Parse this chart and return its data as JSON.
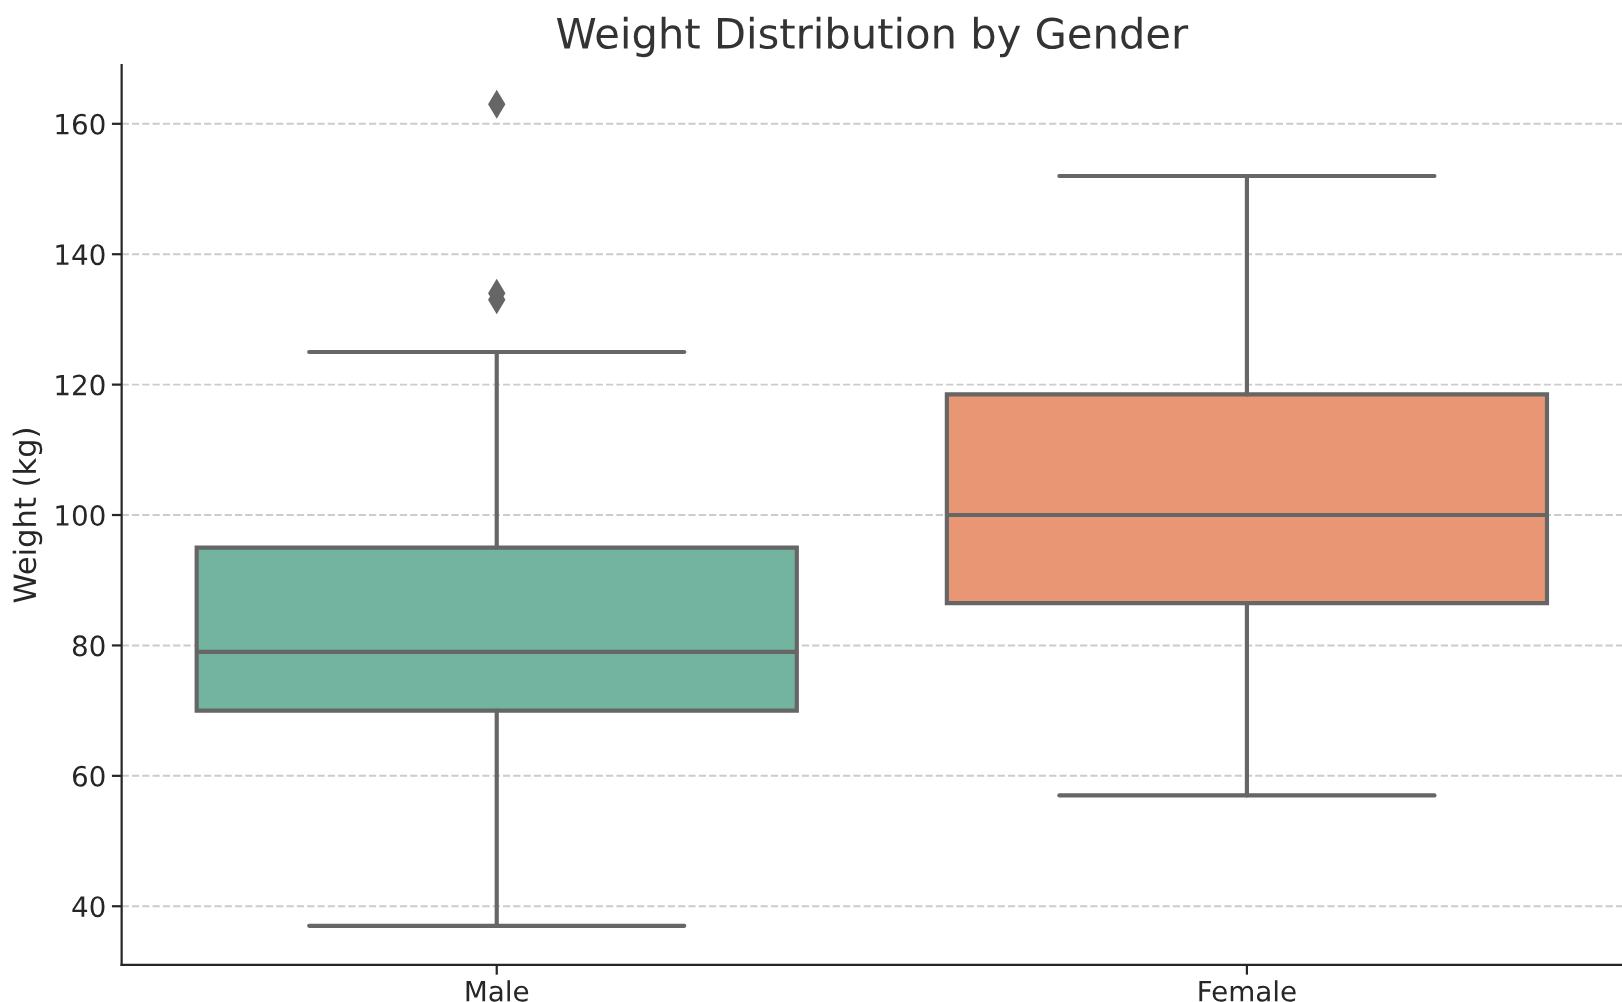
{
  "chart_data": {
    "type": "box",
    "title": "Weight Distribution by Gender",
    "ylabel": "Weight (kg)",
    "categories": [
      "Male",
      "Female"
    ],
    "boxes": [
      {
        "low": 37,
        "q1": 70,
        "median": 79,
        "q3": 95,
        "high": 125,
        "outliers": [
          133,
          134,
          163
        ]
      },
      {
        "low": 57,
        "q1": 86.5,
        "median": 100,
        "q3": 118.5,
        "high": 152
      }
    ],
    "colors": [
      "#73b4a0",
      "#e89674"
    ],
    "ylim": [
      31,
      169
    ],
    "yticks": [
      40,
      60,
      80,
      100,
      120,
      140,
      160
    ],
    "grid": "y"
  }
}
